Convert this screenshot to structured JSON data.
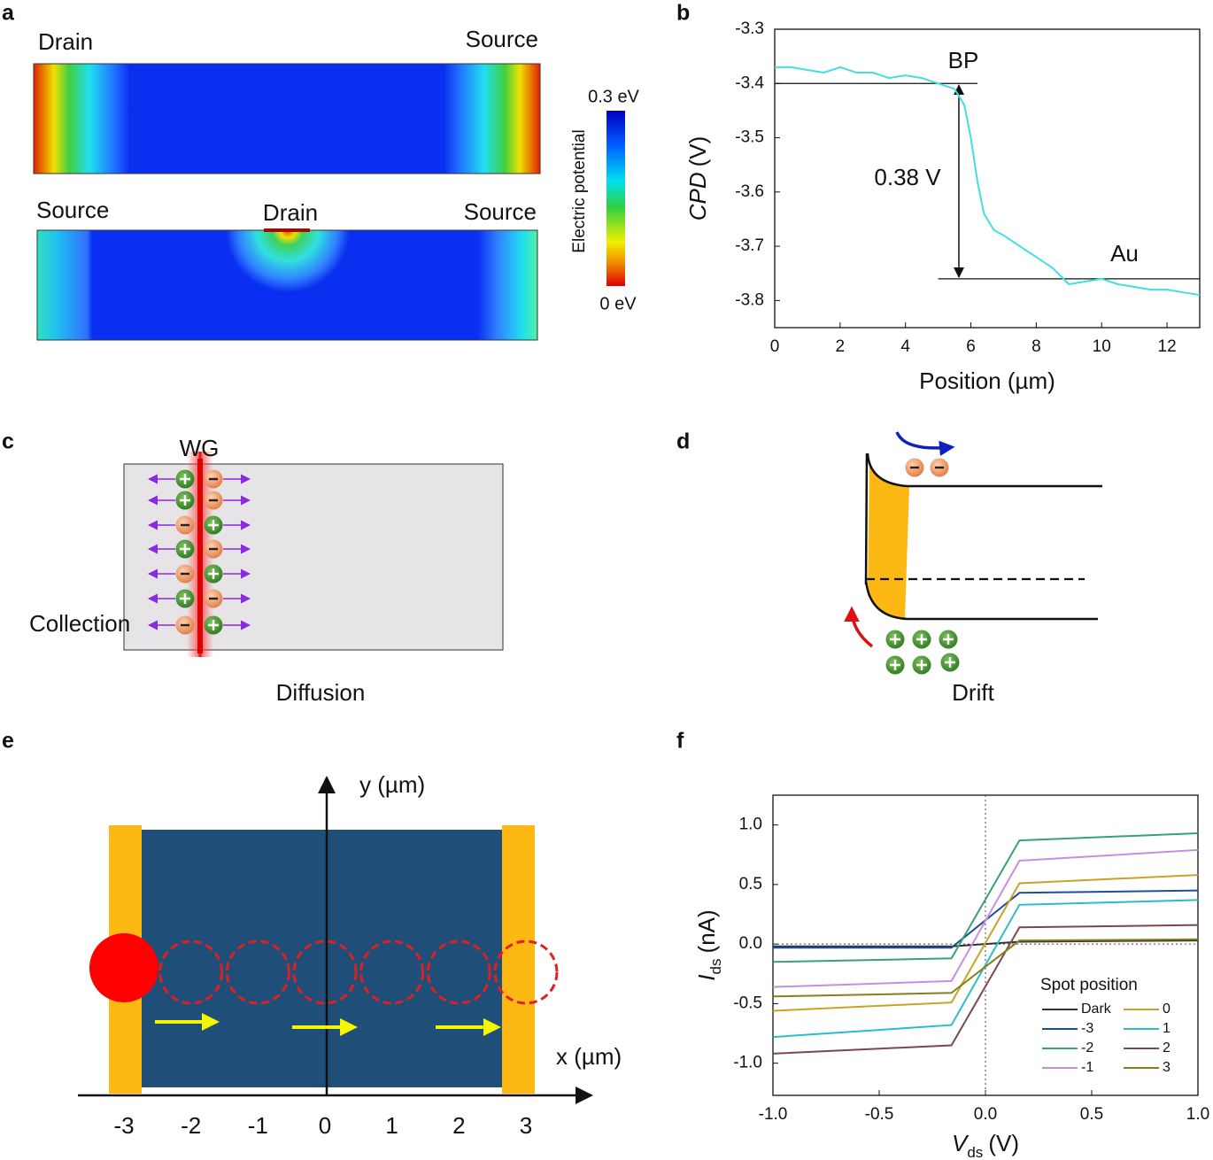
{
  "panel_labels": [
    "a",
    "b",
    "c",
    "d",
    "e",
    "f"
  ],
  "panel_a": {
    "top_labels": [
      "Drain",
      "Source"
    ],
    "bottom_labels": [
      "Source",
      "Drain",
      "Source"
    ],
    "colorbar": {
      "title": "Electric potential",
      "max_label": "0.3 eV",
      "min_label": "0 eV"
    }
  },
  "panel_c": {
    "labels": [
      "WG",
      "Collection",
      "Diffusion"
    ]
  },
  "panel_d": {
    "labels": [
      "Drift"
    ]
  },
  "panel_e": {
    "xlabel": "x (µm)",
    "ylabel": "y (µm)",
    "xticks": [
      -3,
      -2,
      -1,
      0,
      1,
      2,
      3
    ]
  },
  "chart_data": [
    {
      "type": "line",
      "xlabel": "Position (µm)",
      "ylabel": {
        "symbol": "CPD",
        "unit": "(V)"
      },
      "x": [
        0,
        0.5,
        1,
        1.5,
        2,
        2.5,
        3,
        3.5,
        4,
        4.5,
        5,
        5.5,
        5.8,
        6,
        6.2,
        6.4,
        6.7,
        7,
        7.5,
        8,
        8.5,
        9,
        9.5,
        10,
        10.5,
        11,
        11.5,
        12,
        12.5,
        13
      ],
      "series": [
        {
          "color": "#40e0e0",
          "values": [
            -3.37,
            -3.37,
            -3.375,
            -3.38,
            -3.37,
            -3.38,
            -3.38,
            -3.39,
            -3.385,
            -3.39,
            -3.4,
            -3.41,
            -3.44,
            -3.5,
            -3.58,
            -3.64,
            -3.67,
            -3.68,
            -3.7,
            -3.72,
            -3.74,
            -3.77,
            -3.765,
            -3.76,
            -3.77,
            -3.775,
            -3.78,
            -3.78,
            -3.785,
            -3.79
          ]
        }
      ],
      "xlim": [
        0,
        13
      ],
      "ylim": [
        -3.85,
        -3.3
      ],
      "xticks": [
        0,
        2,
        4,
        6,
        8,
        10,
        12
      ],
      "yticks": [
        -3.3,
        -3.4,
        -3.5,
        -3.6,
        -3.7,
        -3.8
      ],
      "annotations": [
        "BP",
        "0.38 V",
        "Au"
      ],
      "reference_lines": [
        {
          "y": -3.4,
          "x": [
            0,
            6.2
          ]
        },
        {
          "y": -3.76,
          "x": [
            5,
            13
          ]
        }
      ]
    },
    {
      "type": "line",
      "xlabel": {
        "symbol": "V",
        "subscript": "ds",
        "unit": "(V)"
      },
      "ylabel": {
        "symbol": "I",
        "subscript": "ds",
        "unit": "(nA)"
      },
      "x": [
        -1,
        -0.16,
        0.16,
        1
      ],
      "series": [
        {
          "name": "Dark",
          "color": "#333333",
          "values": [
            -0.02,
            -0.02,
            0.02,
            0.03
          ]
        },
        {
          "name": "-3",
          "color": "#1f4e9c",
          "values": [
            -0.03,
            -0.03,
            0.43,
            0.45
          ]
        },
        {
          "name": "-2",
          "color": "#3aa07a",
          "values": [
            -0.15,
            -0.12,
            0.87,
            0.93
          ]
        },
        {
          "name": "-1",
          "color": "#c58fe0",
          "values": [
            -0.36,
            -0.31,
            0.7,
            0.79
          ]
        },
        {
          "name": "0",
          "color": "#c9a227",
          "values": [
            -0.56,
            -0.49,
            0.51,
            0.58
          ]
        },
        {
          "name": "1",
          "color": "#2bbccc",
          "values": [
            -0.78,
            -0.68,
            0.33,
            0.37
          ]
        },
        {
          "name": "2",
          "color": "#7a4a4a",
          "values": [
            -0.92,
            -0.85,
            0.14,
            0.16
          ]
        },
        {
          "name": "3",
          "color": "#8b7d1a",
          "values": [
            -0.44,
            -0.41,
            0.03,
            0.04
          ]
        }
      ],
      "xlim": [
        -1,
        1
      ],
      "ylim": [
        -1.27,
        1.25
      ],
      "xticks": [
        {
          "value": -1,
          "label": "-1.0"
        },
        {
          "value": -0.5,
          "label": "-0.5"
        },
        {
          "value": 0,
          "label": "0.0"
        },
        {
          "value": 0.5,
          "label": "0.5"
        },
        {
          "value": 1,
          "label": "1.0"
        }
      ],
      "yticks": [
        {
          "value": 1,
          "label": "1.0"
        },
        {
          "value": 0.5,
          "label": "0.5"
        },
        {
          "value": 0,
          "label": "0.0"
        },
        {
          "value": -0.5,
          "label": "-0.5"
        },
        {
          "value": -1,
          "label": "-1.0"
        }
      ],
      "legend_title": "Spot position",
      "legend": "lower right"
    }
  ]
}
